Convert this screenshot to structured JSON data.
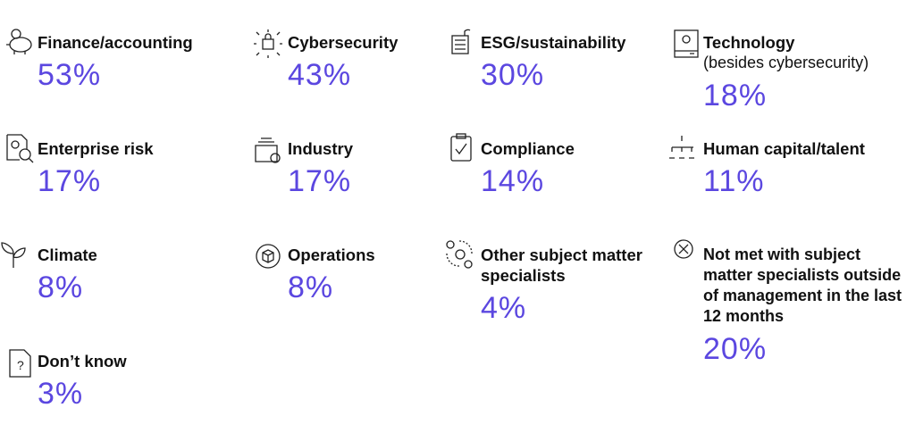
{
  "items": [
    {
      "label": "Finance/accounting",
      "value": "53%"
    },
    {
      "label": "Cybersecurity",
      "value": "43%"
    },
    {
      "label": "ESG/sustainability",
      "value": "30%"
    },
    {
      "label": "Technology",
      "sublabel": "(besides cybersecurity)",
      "value": "18%"
    },
    {
      "label": "Enterprise risk",
      "value": "17%"
    },
    {
      "label": "Industry",
      "value": "17%"
    },
    {
      "label": "Compliance",
      "value": "14%"
    },
    {
      "label": "Human capital/talent",
      "value": "11%"
    },
    {
      "label": "Climate",
      "value": "8%"
    },
    {
      "label": "Operations",
      "value": "8%"
    },
    {
      "label": "Other subject matter specialists",
      "value": "4%"
    },
    {
      "label": "Not met with subject matter specialists outside of management in the last 12 months",
      "value": "20%"
    },
    {
      "label": "Don’t know",
      "value": "3%"
    }
  ]
}
